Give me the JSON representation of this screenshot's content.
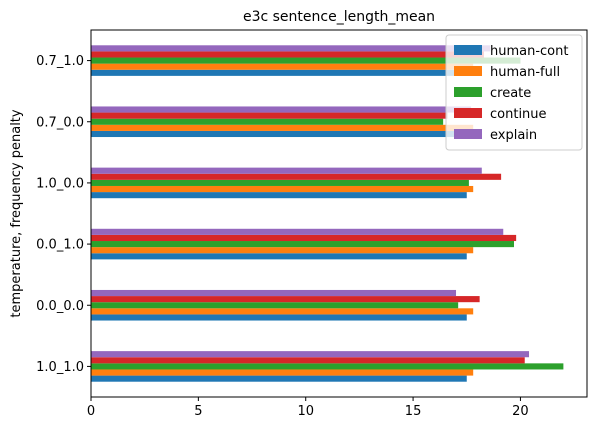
{
  "chart_data": {
    "type": "bar",
    "orientation": "horizontal",
    "title": "e3c sentence_length_mean",
    "xlabel": "",
    "ylabel": "temperature, frequency penalty",
    "categories": [
      "1.0_1.0",
      "0.0_0.0",
      "0.0_1.0",
      "1.0_0.0",
      "0.7_0.0",
      "0.7_1.0"
    ],
    "xlim": [
      0,
      23.1
    ],
    "xticks": [
      0,
      5,
      10,
      15,
      20
    ],
    "grid": false,
    "legend_position": "top-right",
    "series": [
      {
        "name": "human-cont",
        "color": "#1f77b4",
        "values": [
          17.5,
          17.5,
          17.5,
          17.5,
          17.5,
          17.5
        ]
      },
      {
        "name": "human-full",
        "color": "#ff7f0e",
        "values": [
          17.8,
          17.8,
          17.8,
          17.8,
          17.8,
          17.8
        ]
      },
      {
        "name": "create",
        "color": "#2ca02c",
        "values": [
          22.0,
          17.1,
          19.7,
          17.6,
          16.4,
          20.0
        ]
      },
      {
        "name": "continue",
        "color": "#d62728",
        "values": [
          20.2,
          18.1,
          19.8,
          19.1,
          16.6,
          18.3
        ]
      },
      {
        "name": "explain",
        "color": "#9467bd",
        "values": [
          20.4,
          17.0,
          19.2,
          18.2,
          17.7,
          18.6
        ]
      }
    ]
  }
}
